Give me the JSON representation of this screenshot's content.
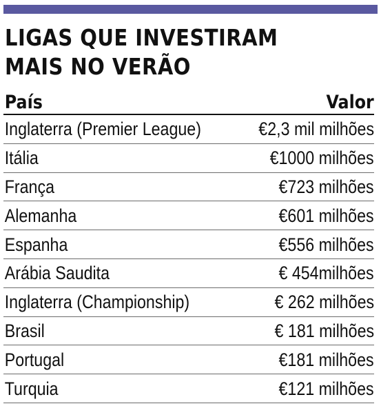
{
  "title": {
    "line1": "LIGAS QUE INVESTIRAM",
    "line2": "MAIS NO VERÃO"
  },
  "columns": {
    "country": "País",
    "value": "Valor"
  },
  "rows": [
    {
      "country": "Inglaterra (Premier League)",
      "value": "€2,3 mil milhões"
    },
    {
      "country": "Itália",
      "value": "€1000 milhões"
    },
    {
      "country": "França",
      "value": "€723 milhões"
    },
    {
      "country": "Alemanha",
      "value": "€601 milhões"
    },
    {
      "country": "Espanha",
      "value": "€556 milhões"
    },
    {
      "country": "Arábia Saudita",
      "value": "€ 454milhões"
    },
    {
      "country": "Inglaterra (Championship)",
      "value": "€ 262 milhões"
    },
    {
      "country": "Brasil",
      "value": "€ 181 milhões"
    },
    {
      "country": "Portugal",
      "value": "€181 milhões"
    },
    {
      "country": "Turquia",
      "value": "€121 milhões"
    }
  ],
  "colors": {
    "accent_bar": "#5a59a0",
    "text": "#111111",
    "row_divider": "#6b6b6b"
  }
}
